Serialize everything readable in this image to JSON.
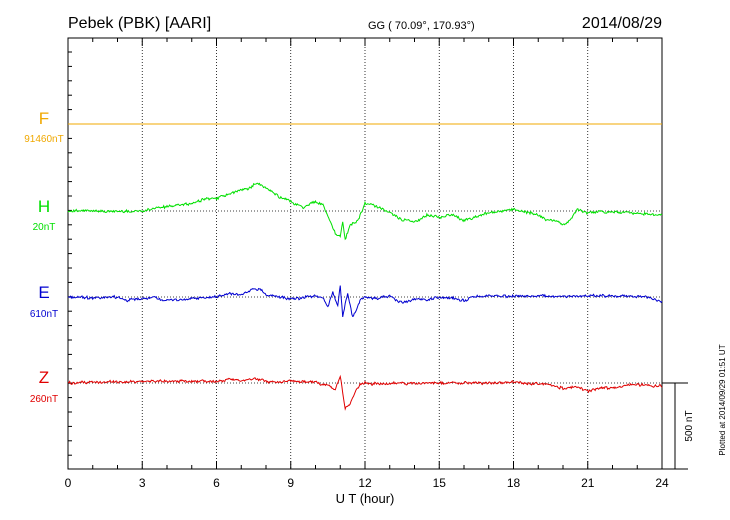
{
  "header": {
    "station": "Pebek (PBK)  [AARI]",
    "coords": "GG ( 70.09°, 170.93°)",
    "date": "2014/08/29"
  },
  "footer": {
    "plotted": "Plotted at 2014/09/29 01:51  UT"
  },
  "scale": {
    "label": "500 nT",
    "value_nT": 500
  },
  "chart_data": {
    "type": "line",
    "xlabel": "U T (hour)",
    "xlim": [
      0,
      24
    ],
    "xticks": [
      0,
      3,
      6,
      9,
      12,
      15,
      18,
      21,
      24
    ],
    "xtick_labels": [
      "0",
      "3",
      "6",
      "9",
      "12",
      "15",
      "18",
      "21",
      "24"
    ],
    "grid": true,
    "series": [
      {
        "name": "F",
        "baseline_label": "91460nT",
        "color": "#f0a800",
        "x": [
          0,
          24
        ],
        "y": [
          0,
          0
        ]
      },
      {
        "name": "H",
        "baseline_label": "20nT",
        "color": "#00e000",
        "x": [
          0,
          1,
          2,
          3,
          3.5,
          4,
          4.5,
          5,
          5.5,
          6,
          6.5,
          7,
          7.3,
          7.6,
          8,
          8.5,
          9,
          9.5,
          10,
          10.3,
          10.5,
          10.8,
          11,
          11.1,
          11.2,
          11.4,
          11.6,
          11.8,
          12,
          12.5,
          13,
          13.5,
          14,
          14.5,
          15,
          15.5,
          16,
          16.5,
          17,
          17.5,
          18,
          18.5,
          19,
          19.3,
          19.7,
          20,
          20.3,
          20.6,
          21,
          21.5,
          22,
          22.5,
          23,
          23.5,
          24
        ],
        "y": [
          0,
          0,
          -2,
          0,
          15,
          25,
          35,
          40,
          70,
          75,
          95,
          125,
          130,
          165,
          135,
          85,
          55,
          20,
          55,
          40,
          -30,
          -130,
          -150,
          -60,
          -170,
          -80,
          -70,
          -30,
          45,
          25,
          -10,
          -50,
          -65,
          -25,
          -35,
          -20,
          -55,
          -35,
          -10,
          -3,
          10,
          -5,
          -25,
          -50,
          -55,
          -80,
          -50,
          10,
          -10,
          -5,
          -8,
          -8,
          -15,
          -18,
          -22
        ]
      },
      {
        "name": "E",
        "baseline_label": "610nT",
        "color": "#0000d0",
        "x": [
          0,
          1,
          2,
          2.3,
          3,
          3.5,
          4,
          5,
          6,
          6.5,
          7,
          7.5,
          7.8,
          8,
          8.5,
          9,
          9.5,
          10,
          10.3,
          10.5,
          10.7,
          10.9,
          11,
          11.1,
          11.3,
          11.5,
          11.8,
          12,
          12.5,
          13,
          13.5,
          14,
          14.5,
          15,
          15.5,
          16,
          16.5,
          17,
          17.5,
          18,
          19,
          20,
          20.5,
          21,
          21.5,
          22,
          22.5,
          23,
          23.5,
          23.8,
          24
        ],
        "y": [
          0,
          -5,
          0,
          -20,
          -10,
          -5,
          -20,
          -10,
          0,
          20,
          10,
          50,
          40,
          15,
          0,
          -10,
          -5,
          5,
          -5,
          -60,
          30,
          -50,
          70,
          -110,
          20,
          -120,
          -20,
          0,
          -10,
          5,
          -35,
          -10,
          -20,
          0,
          -5,
          -20,
          5,
          5,
          5,
          5,
          5,
          5,
          5,
          5,
          10,
          5,
          5,
          5,
          0,
          -25,
          -25
        ]
      },
      {
        "name": "Z",
        "baseline_label": "260nT",
        "color": "#e00000",
        "x": [
          0,
          1,
          2,
          3,
          4,
          5,
          6,
          6.5,
          7,
          7.5,
          7.8,
          8,
          8.5,
          9,
          9.5,
          10,
          10.3,
          10.6,
          10.8,
          11,
          11.1,
          11.2,
          11.4,
          11.6,
          11.8,
          12,
          12.5,
          13,
          14,
          15,
          16,
          17,
          18,
          19,
          19.5,
          20,
          20.5,
          21,
          21.5,
          22,
          22.5,
          23,
          23.5,
          24
        ],
        "y": [
          0,
          5,
          8,
          10,
          10,
          10,
          8,
          20,
          15,
          25,
          15,
          10,
          5,
          12,
          8,
          5,
          -10,
          -20,
          -40,
          40,
          -60,
          -150,
          -120,
          -50,
          -10,
          0,
          -5,
          0,
          -5,
          0,
          0,
          0,
          5,
          -5,
          -10,
          -30,
          -20,
          -50,
          -25,
          -30,
          -15,
          -10,
          -15,
          -20
        ]
      }
    ]
  }
}
